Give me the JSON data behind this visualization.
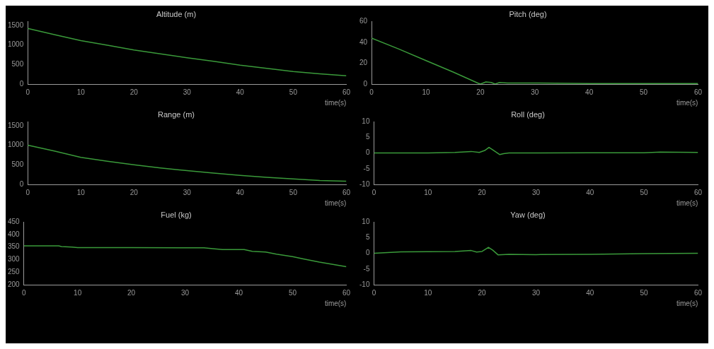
{
  "chart_data": [
    {
      "type": "line",
      "title": "Altitude (m)",
      "xlabel": "time(s)",
      "color": "#3a9a3a",
      "xlim": [
        0,
        60
      ],
      "xticks": [
        0,
        10,
        20,
        30,
        40,
        50,
        60
      ],
      "ylim": [
        0,
        1600
      ],
      "yticks": [
        0,
        500,
        1000,
        1500
      ],
      "x": [
        0,
        5,
        10,
        15,
        20,
        25,
        30,
        35,
        40,
        45,
        50,
        55,
        60
      ],
      "values": [
        1420,
        1260,
        1110,
        990,
        870,
        770,
        670,
        580,
        480,
        400,
        320,
        260,
        210
      ]
    },
    {
      "type": "line",
      "title": "Pitch (deg)",
      "xlabel": "time(s)",
      "color": "#3a9a3a",
      "xlim": [
        0,
        60
      ],
      "xticks": [
        0,
        10,
        20,
        30,
        40,
        50,
        60
      ],
      "ylim": [
        0,
        60
      ],
      "yticks": [
        0,
        20,
        40,
        60
      ],
      "x": [
        0,
        5,
        10,
        15,
        19.5,
        20,
        21,
        22,
        22.7,
        23.5,
        25,
        30,
        40,
        50,
        60
      ],
      "values": [
        44,
        33.5,
        22.5,
        11.5,
        1,
        0,
        2,
        1.5,
        0,
        1.5,
        1,
        1,
        0.5,
        0.5,
        0.5
      ]
    },
    {
      "type": "line",
      "title": "Range (m)",
      "xlabel": "time(s)",
      "color": "#3a9a3a",
      "xlim": [
        0,
        60
      ],
      "xticks": [
        0,
        10,
        20,
        30,
        40,
        50,
        60
      ],
      "ylim": [
        0,
        1600
      ],
      "yticks": [
        0,
        500,
        1000,
        1500
      ],
      "x": [
        0,
        5,
        10,
        15,
        20,
        25,
        30,
        35,
        40,
        45,
        50,
        55,
        60
      ],
      "values": [
        1000,
        850,
        690,
        590,
        500,
        420,
        350,
        290,
        230,
        180,
        140,
        100,
        80
      ]
    },
    {
      "type": "line",
      "title": "Roll (deg)",
      "xlabel": "time(s)",
      "color": "#3a9a3a",
      "xlim": [
        0,
        60
      ],
      "xticks": [
        0,
        10,
        20,
        30,
        40,
        50,
        60
      ],
      "ylim": [
        -10,
        10
      ],
      "yticks": [
        -10,
        -5,
        0,
        5,
        10
      ],
      "x": [
        0,
        10,
        15,
        18,
        19.5,
        20.5,
        21.3,
        22,
        23.3,
        24,
        25,
        30,
        40,
        50,
        53,
        60
      ],
      "values": [
        0,
        0,
        0.2,
        0.5,
        0.2,
        0.8,
        1.8,
        1,
        -0.5,
        -0.2,
        0,
        0,
        0.1,
        0.1,
        0.3,
        0.2
      ]
    },
    {
      "type": "line",
      "title": "Fuel (kg)",
      "xlabel": "time(s)",
      "color": "#3a9a3a",
      "xlim": [
        0,
        60
      ],
      "xticks": [
        0,
        10,
        20,
        30,
        40,
        50,
        60
      ],
      "ylim": [
        200,
        450
      ],
      "yticks": [
        200,
        250,
        300,
        350,
        400,
        450
      ],
      "x": [
        0,
        6.5,
        7,
        9,
        10,
        20,
        30,
        33.5,
        35.5,
        37,
        41,
        42.5,
        45,
        47,
        50,
        52,
        55,
        60
      ],
      "values": [
        355,
        355,
        352,
        350,
        348,
        348,
        347,
        347,
        343,
        340,
        340,
        333,
        330,
        322,
        312,
        303,
        290,
        272
      ]
    },
    {
      "type": "line",
      "title": "Yaw (deg)",
      "xlabel": "time(s)",
      "color": "#3a9a3a",
      "xlim": [
        0,
        60
      ],
      "xticks": [
        0,
        10,
        20,
        30,
        40,
        50,
        60
      ],
      "ylim": [
        -10,
        10
      ],
      "yticks": [
        -10,
        -5,
        0,
        5,
        10
      ],
      "x": [
        0,
        5,
        15,
        18,
        19,
        20,
        21.2,
        22,
        23,
        25,
        30,
        40,
        50,
        60
      ],
      "values": [
        0,
        0.5,
        0.6,
        0.9,
        0.4,
        0.6,
        1.9,
        1,
        -0.5,
        -0.3,
        -0.4,
        -0.3,
        -0.1,
        0
      ]
    }
  ]
}
